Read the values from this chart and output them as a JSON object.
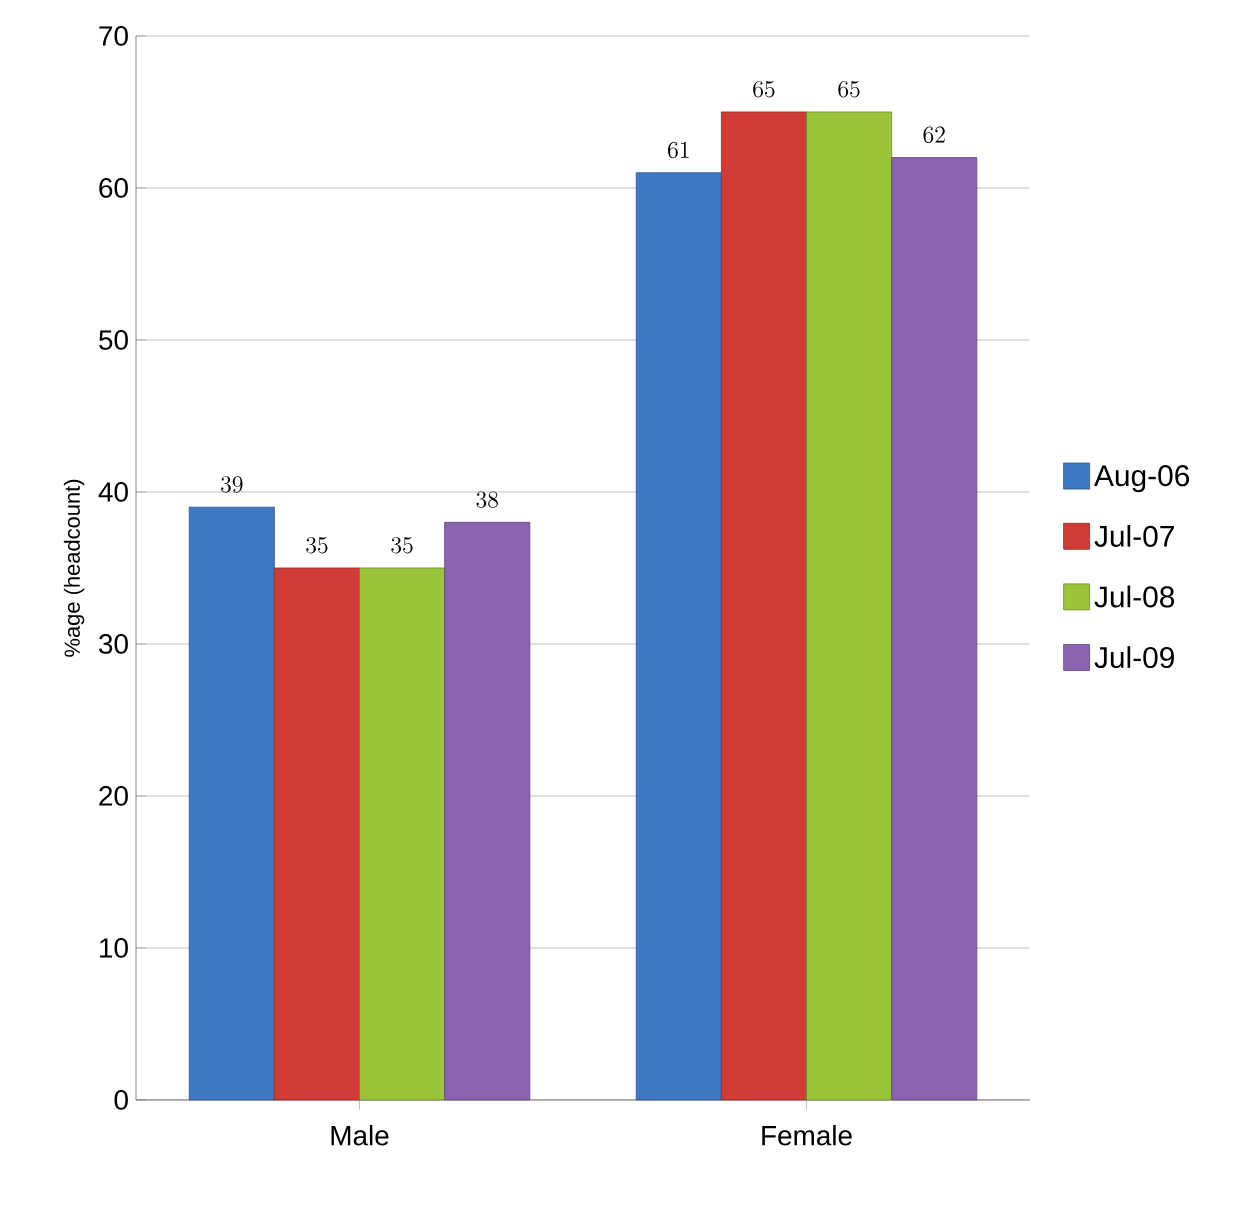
{
  "chart_data": {
    "type": "bar",
    "ylabel": "%age (headcount)",
    "categories": [
      "Male",
      "Female"
    ],
    "series": [
      {
        "name": "Aug-06",
        "color": "#3f78c4",
        "values": [
          39,
          61
        ]
      },
      {
        "name": "Jul-07",
        "color": "#d03b35",
        "values": [
          35,
          65
        ]
      },
      {
        "name": "Jul-08",
        "color": "#9bc43a",
        "values": [
          35,
          65
        ]
      },
      {
        "name": "Jul-09",
        "color": "#8a62b0",
        "values": [
          38,
          62
        ]
      }
    ],
    "ylim": [
      0,
      70
    ],
    "yticks": [
      0,
      10,
      20,
      30,
      40,
      50,
      60,
      70
    ],
    "grid": "y",
    "legend": "right",
    "data_labels": true
  }
}
